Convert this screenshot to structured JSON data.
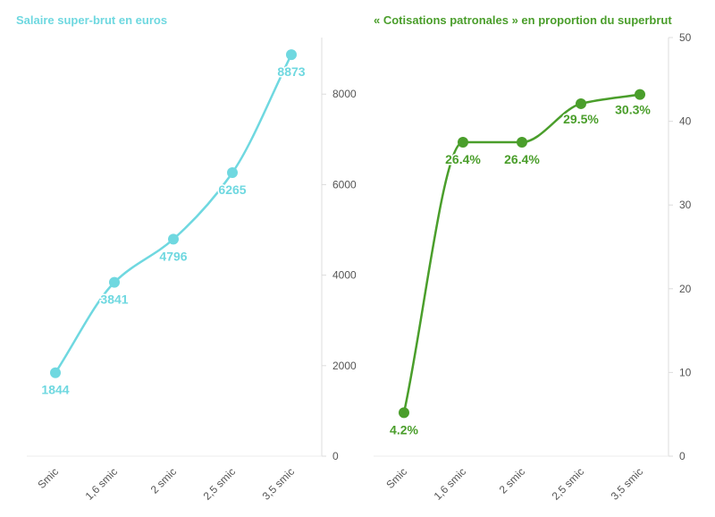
{
  "chart_data": [
    {
      "type": "line",
      "title": "Salaire super-brut en euros",
      "color": "#6fd8e0",
      "categories": [
        "Smic",
        "1,6 smic",
        "2 smic",
        "2,5 smic",
        "3,5 smic"
      ],
      "values": [
        1844,
        3841,
        4796,
        6265,
        8873
      ],
      "labels": [
        "1844",
        "3841",
        "4796",
        "6265",
        "8873"
      ],
      "yticks": [
        0,
        2000,
        4000,
        6000,
        8000
      ],
      "ylim": [
        0,
        9250
      ],
      "yaxis_side": "right",
      "xlabel": "",
      "ylabel": ""
    },
    {
      "type": "line",
      "title": "« Cotisations patronales » en proportion du superbrut",
      "color": "#4a9e2b",
      "categories": [
        "Smic",
        "1,6 smic",
        "2 smic",
        "2,5 smic",
        "3,5 smic"
      ],
      "values": [
        4.2,
        26.4,
        26.4,
        29.5,
        30.3
      ],
      "labels": [
        "4.2%",
        "26.4%",
        "26.4%",
        "29.5%",
        "30.3%"
      ],
      "plot_values": [
        5.2,
        37.5,
        37.5,
        42.1,
        43.2
      ],
      "yticks": [
        0,
        10,
        20,
        30,
        40,
        50
      ],
      "ylim": [
        0,
        50
      ],
      "yaxis_side": "right",
      "xlabel": "",
      "ylabel": ""
    }
  ]
}
